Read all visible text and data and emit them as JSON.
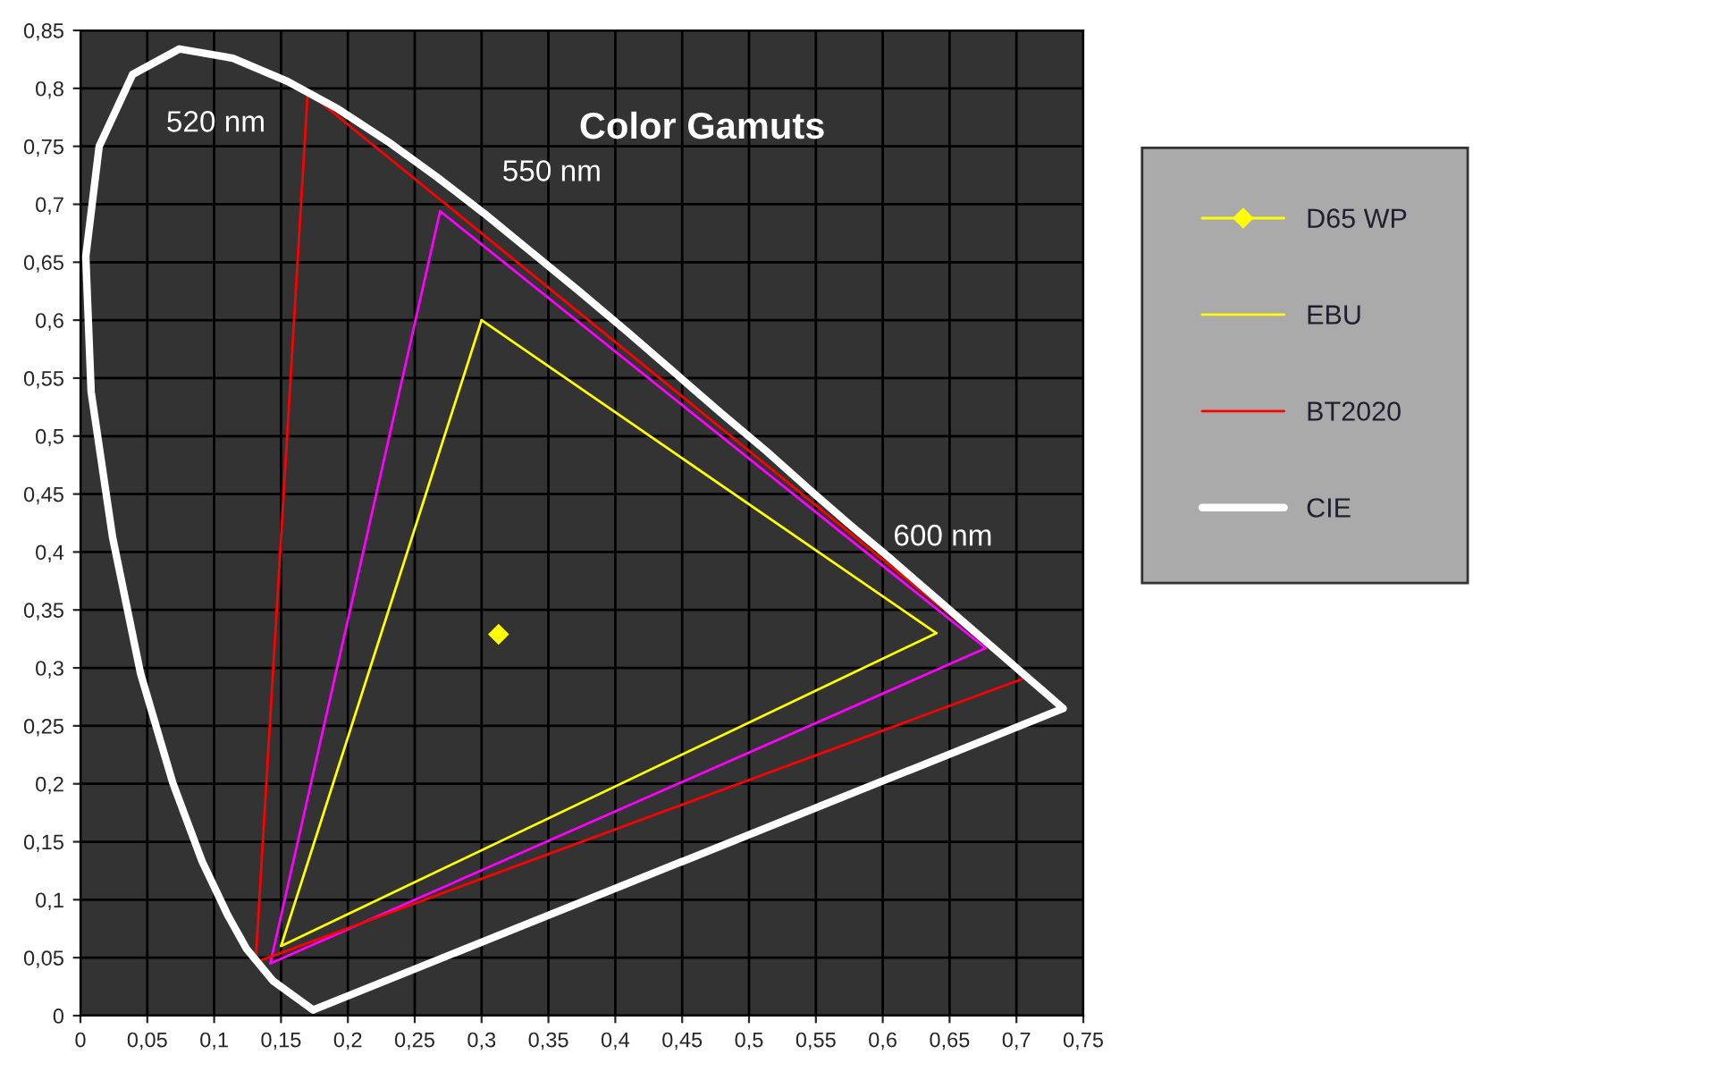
{
  "chart_data": {
    "type": "line",
    "title": "Color Gamuts",
    "xlim": [
      0,
      0.75
    ],
    "ylim": [
      0,
      0.85
    ],
    "xticks": [
      0,
      {
        "value": 0.05,
        "label": "0,05"
      },
      {
        "value": 0.1,
        "label": "0,1"
      },
      {
        "value": 0.15,
        "label": "0,15"
      },
      {
        "value": 0.2,
        "label": "0,2"
      },
      {
        "value": 0.25,
        "label": "0,25"
      },
      {
        "value": 0.3,
        "label": "0,3"
      },
      {
        "value": 0.35,
        "label": "0,35"
      },
      {
        "value": 0.4,
        "label": "0,4"
      },
      {
        "value": 0.45,
        "label": "0,45"
      },
      {
        "value": 0.5,
        "label": "0,5"
      },
      {
        "value": 0.55,
        "label": "0,55"
      },
      {
        "value": 0.6,
        "label": "0,6"
      },
      {
        "value": 0.65,
        "label": "0,65"
      },
      {
        "value": 0.7,
        "label": "0,7"
      },
      {
        "value": 0.75,
        "label": "0,75"
      }
    ],
    "yticks": [
      0,
      {
        "value": 0.05,
        "label": "0,05"
      },
      {
        "value": 0.1,
        "label": "0,1"
      },
      {
        "value": 0.15,
        "label": "0,15"
      },
      {
        "value": 0.2,
        "label": "0,2"
      },
      {
        "value": 0.25,
        "label": "0,25"
      },
      {
        "value": 0.3,
        "label": "0,3"
      },
      {
        "value": 0.35,
        "label": "0,35"
      },
      {
        "value": 0.4,
        "label": "0,4"
      },
      {
        "value": 0.45,
        "label": "0,45"
      },
      {
        "value": 0.5,
        "label": "0,5"
      },
      {
        "value": 0.55,
        "label": "0,55"
      },
      {
        "value": 0.6,
        "label": "0,6"
      },
      {
        "value": 0.65,
        "label": "0,65"
      },
      {
        "value": 0.7,
        "label": "0,7"
      },
      {
        "value": 0.75,
        "label": "0,75"
      },
      {
        "value": 0.8,
        "label": "0,8"
      },
      {
        "value": 0.85,
        "label": "0,85"
      }
    ],
    "grid": true,
    "legend": "right",
    "marker": "none",
    "line_style": "solid",
    "series": [
      {
        "color": "#ff00ff",
        "x": [
          0.677,
          0.269,
          0.142,
          0.677
        ],
        "values": [
          0.317,
          0.694,
          0.045,
          0.317
        ]
      },
      {
        "name": "D65 WP",
        "color": "#ffff00",
        "marker": "diamond",
        "x": [
          0.3127
        ],
        "values": [
          0.329
        ]
      },
      {
        "name": "EBU",
        "color": "#ffff00",
        "x": [
          0.64,
          0.3,
          0.15,
          0.64
        ],
        "values": [
          0.33,
          0.6,
          0.06,
          0.33
        ]
      },
      {
        "name": "BT2020",
        "color": "#ff0000",
        "x": [
          0.708,
          0.17,
          0.131,
          0.708
        ],
        "values": [
          0.292,
          0.797,
          0.046,
          0.292
        ]
      },
      {
        "name": "CIE",
        "color": "#ffffff",
        "x": [
          0.174,
          0.144,
          0.124,
          0.11,
          0.091,
          0.069,
          0.045,
          0.024,
          0.008,
          0.004,
          0.014,
          0.039,
          0.074,
          0.114,
          0.155,
          0.193,
          0.23,
          0.266,
          0.302,
          0.337,
          0.373,
          0.409,
          0.444,
          0.479,
          0.513,
          0.545,
          0.575,
          0.603,
          0.627,
          0.666,
          0.692,
          0.719,
          0.735,
          0.174
        ],
        "values": [
          0.005,
          0.03,
          0.058,
          0.087,
          0.133,
          0.201,
          0.295,
          0.413,
          0.538,
          0.655,
          0.75,
          0.812,
          0.834,
          0.826,
          0.806,
          0.782,
          0.754,
          0.724,
          0.692,
          0.659,
          0.625,
          0.59,
          0.555,
          0.52,
          0.487,
          0.454,
          0.424,
          0.397,
          0.373,
          0.334,
          0.308,
          0.281,
          0.265,
          0.005
        ]
      }
    ],
    "annotations": [
      "520 nm",
      "550 nm",
      "600 nm"
    ]
  }
}
